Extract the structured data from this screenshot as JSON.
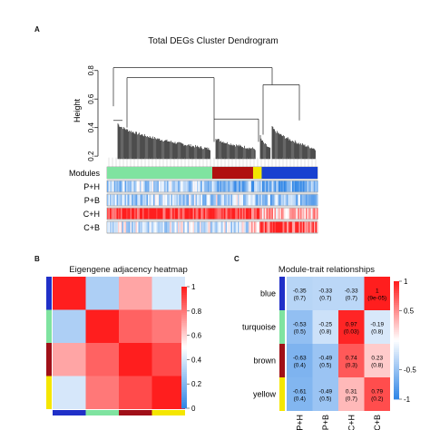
{
  "panels": {
    "A": "A",
    "B": "B",
    "C": "C"
  },
  "chart_data": [
    {
      "type": "dendrogram",
      "title": "Total DEGs Cluster Dendrogram",
      "ylabel": "Height",
      "yticks": [
        "0.2",
        "0.4",
        "0.6",
        "0.8"
      ],
      "ylim": [
        0.15,
        0.9
      ],
      "color_rows": [
        {
          "label": "Modules",
          "type": "module"
        },
        {
          "label": "P+H",
          "type": "trait"
        },
        {
          "label": "P+B",
          "type": "trait"
        },
        {
          "label": "C+H",
          "type": "trait"
        },
        {
          "label": "C+B",
          "type": "trait"
        }
      ],
      "modules": [
        {
          "name": "turquoise",
          "color": "#7fe3a0",
          "fraction": 0.49
        },
        {
          "name": "brown",
          "color": "#b01010",
          "fraction": 0.19
        },
        {
          "name": "yellow",
          "color": "#f2e600",
          "fraction": 0.04
        },
        {
          "name": "blue",
          "color": "#1840d0",
          "fraction": 0.26
        }
      ]
    },
    {
      "type": "heatmap",
      "title": "Eigengene adjacency heatmap",
      "modules": [
        "blue",
        "turquoise",
        "brown",
        "yellow"
      ],
      "module_colors": [
        "#2030c8",
        "#7fe3a0",
        "#a01018",
        "#f5e600"
      ],
      "values": [
        [
          1.0,
          0.3,
          0.7,
          0.4
        ],
        [
          0.3,
          1.0,
          0.85,
          0.8
        ],
        [
          0.7,
          0.85,
          1.0,
          0.9
        ],
        [
          0.4,
          0.8,
          0.9,
          1.0
        ]
      ],
      "scale_ticks": [
        "1",
        "0.8",
        "0.6",
        "0.4",
        "0.2",
        "0"
      ],
      "scale_range": [
        0,
        1
      ]
    },
    {
      "type": "heatmap",
      "title": "Module-trait relationships",
      "rows": [
        "blue",
        "turquoise",
        "brown",
        "yellow"
      ],
      "row_colors": [
        "#2030c8",
        "#7fe3a0",
        "#a01018",
        "#f5e600"
      ],
      "columns": [
        "P+H",
        "P+B",
        "C+H",
        "C+B"
      ],
      "values": [
        [
          -0.35,
          -0.33,
          -0.33,
          1
        ],
        [
          -0.53,
          -0.25,
          0.97,
          -0.19
        ],
        [
          -0.63,
          -0.49,
          0.74,
          0.23
        ],
        [
          -0.61,
          -0.49,
          0.31,
          0.79
        ]
      ],
      "cell_labels": [
        [
          [
            "-0.35",
            "(0.7)"
          ],
          [
            "-0.33",
            "(0.7)"
          ],
          [
            "-0.33",
            "(0.7)"
          ],
          [
            "1",
            "(9e-05)"
          ]
        ],
        [
          [
            "-0.53",
            "(0.5)"
          ],
          [
            "-0.25",
            "(0.8)"
          ],
          [
            "0.97",
            "(0.03)"
          ],
          [
            "-0.19",
            "(0.8)"
          ]
        ],
        [
          [
            "-0.63",
            "(0.4)"
          ],
          [
            "-0.49",
            "(0.5)"
          ],
          [
            "0.74",
            "(0.3)"
          ],
          [
            "0.23",
            "(0.8)"
          ]
        ],
        [
          [
            "-0.61",
            "(0.4)"
          ],
          [
            "-0.49",
            "(0.5)"
          ],
          [
            "0.31",
            "(0.7)"
          ],
          [
            "0.79",
            "(0.2)"
          ]
        ]
      ],
      "scale_ticks": [
        "1",
        "0.5",
        "-0.5",
        "-1"
      ],
      "scale_range": [
        -1,
        1
      ]
    }
  ]
}
